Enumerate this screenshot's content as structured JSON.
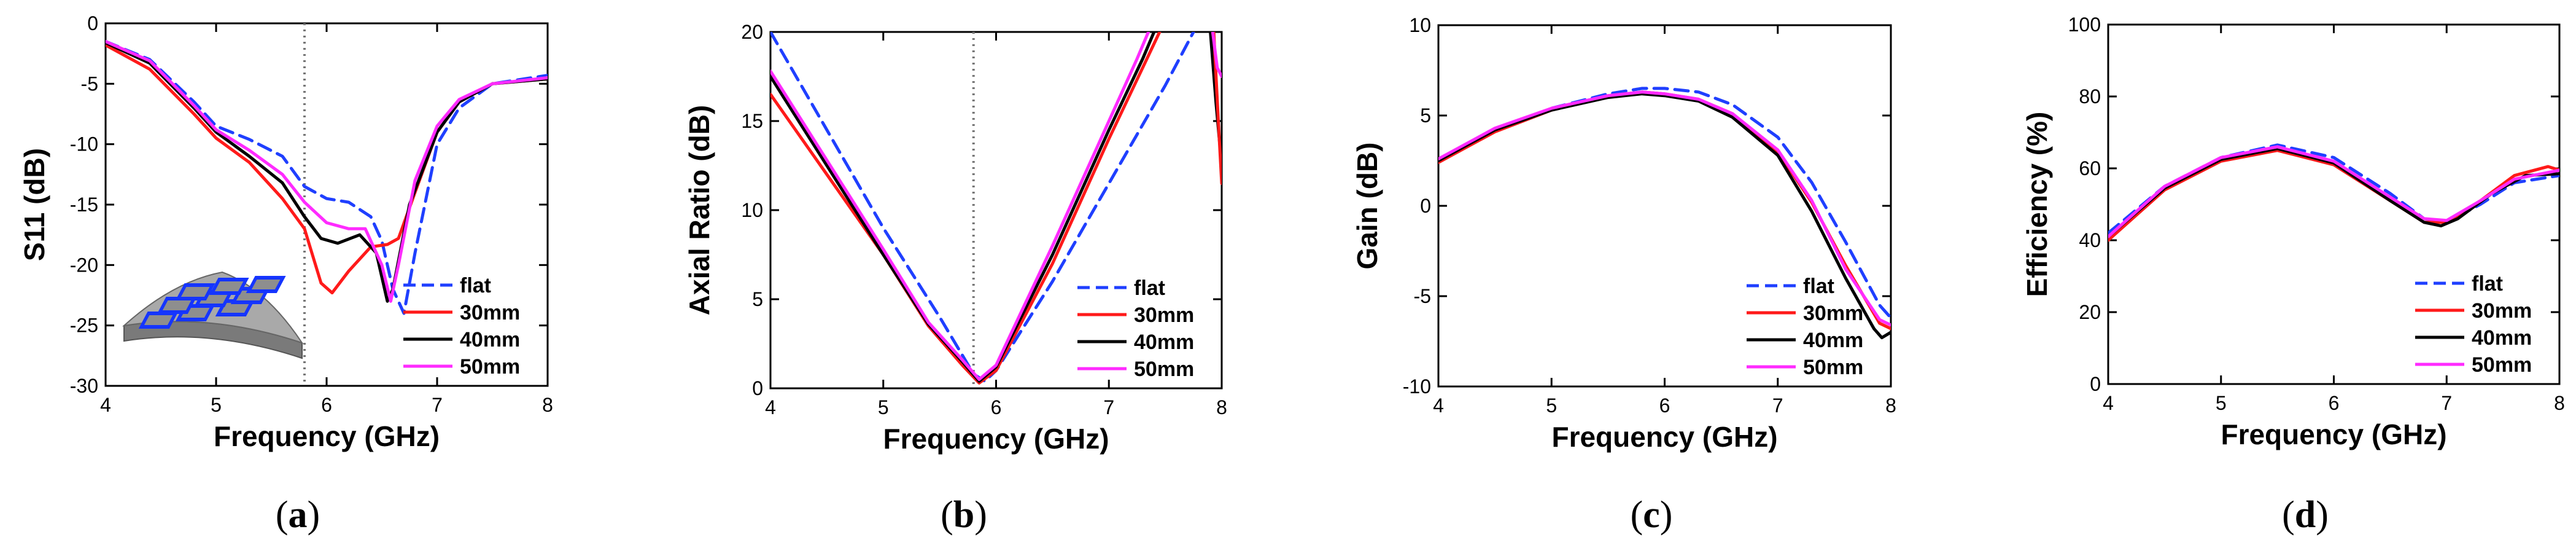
{
  "colors": {
    "flat": "#1f3fff",
    "30mm": "#ff1a1a",
    "40mm": "#000000",
    "50mm": "#ff2bff"
  },
  "chart_data": [
    {
      "id": "a",
      "type": "line",
      "caption": "a",
      "xlabel": "Frequency (GHz)",
      "ylabel": "S11 (dB)",
      "xlim": [
        4,
        8
      ],
      "ylim": [
        -30,
        0
      ],
      "xticks": [
        4,
        5,
        6,
        7,
        8
      ],
      "yticks": [
        0,
        -5,
        -10,
        -15,
        -20,
        -25,
        -30
      ],
      "marker_x": 5.8,
      "legend": [
        "flat",
        "30mm",
        "40mm",
        "50mm"
      ],
      "legend_position": "bottom-right",
      "inset": "curved-array-icon",
      "series": [
        {
          "name": "flat",
          "style": "dashed",
          "points": [
            [
              4,
              -1.5
            ],
            [
              4.4,
              -3
            ],
            [
              4.8,
              -6.5
            ],
            [
              5,
              -8.5
            ],
            [
              5.3,
              -9.6
            ],
            [
              5.6,
              -11
            ],
            [
              5.8,
              -13.5
            ],
            [
              6,
              -14.5
            ],
            [
              6.2,
              -14.8
            ],
            [
              6.4,
              -16
            ],
            [
              6.5,
              -18
            ],
            [
              6.6,
              -22
            ],
            [
              6.7,
              -24
            ],
            [
              6.8,
              -19
            ],
            [
              7,
              -10
            ],
            [
              7.2,
              -7
            ],
            [
              7.5,
              -5
            ],
            [
              8,
              -4.3
            ]
          ]
        },
        {
          "name": "30mm",
          "style": "solid",
          "points": [
            [
              4,
              -1.8
            ],
            [
              4.4,
              -3.8
            ],
            [
              4.8,
              -7.5
            ],
            [
              5,
              -9.5
            ],
            [
              5.3,
              -11.5
            ],
            [
              5.6,
              -14.5
            ],
            [
              5.8,
              -17
            ],
            [
              5.95,
              -21.5
            ],
            [
              6.05,
              -22.3
            ],
            [
              6.2,
              -20.5
            ],
            [
              6.4,
              -18.5
            ],
            [
              6.55,
              -18.3
            ],
            [
              6.65,
              -17.8
            ],
            [
              6.8,
              -14
            ],
            [
              7,
              -9
            ],
            [
              7.2,
              -6.5
            ],
            [
              7.5,
              -5
            ],
            [
              8,
              -4.6
            ]
          ]
        },
        {
          "name": "40mm",
          "style": "solid",
          "points": [
            [
              4,
              -1.6
            ],
            [
              4.4,
              -3.3
            ],
            [
              4.8,
              -7
            ],
            [
              5,
              -9
            ],
            [
              5.3,
              -11
            ],
            [
              5.6,
              -13.2
            ],
            [
              5.8,
              -16
            ],
            [
              5.95,
              -17.8
            ],
            [
              6.1,
              -18.2
            ],
            [
              6.3,
              -17.5
            ],
            [
              6.45,
              -19
            ],
            [
              6.55,
              -23
            ],
            [
              6.6,
              -22
            ],
            [
              6.75,
              -15
            ],
            [
              7,
              -9
            ],
            [
              7.2,
              -6.5
            ],
            [
              7.5,
              -5
            ],
            [
              8,
              -4.6
            ]
          ]
        },
        {
          "name": "50mm",
          "style": "solid",
          "points": [
            [
              4,
              -1.5
            ],
            [
              4.4,
              -3.1
            ],
            [
              4.8,
              -6.8
            ],
            [
              5,
              -8.8
            ],
            [
              5.3,
              -10.5
            ],
            [
              5.6,
              -12.5
            ],
            [
              5.8,
              -14.8
            ],
            [
              6,
              -16.5
            ],
            [
              6.2,
              -17
            ],
            [
              6.35,
              -17
            ],
            [
              6.5,
              -20
            ],
            [
              6.58,
              -23
            ],
            [
              6.65,
              -20
            ],
            [
              6.8,
              -13
            ],
            [
              7,
              -8.5
            ],
            [
              7.2,
              -6.3
            ],
            [
              7.5,
              -5
            ],
            [
              8,
              -4.5
            ]
          ]
        }
      ]
    },
    {
      "id": "b",
      "type": "line",
      "caption": "b",
      "xlabel": "Frequency (GHz)",
      "ylabel": "Axial Ratio (dB)",
      "xlim": [
        4,
        8
      ],
      "ylim": [
        0,
        20
      ],
      "xticks": [
        4,
        5,
        6,
        7,
        8
      ],
      "yticks": [
        0,
        5,
        10,
        15,
        20
      ],
      "marker_x": 5.8,
      "legend": [
        "flat",
        "30mm",
        "40mm",
        "50mm"
      ],
      "legend_position": "bottom-right",
      "series": [
        {
          "name": "flat",
          "style": "dashed",
          "points": [
            [
              4,
              20
            ],
            [
              4.5,
              14.5
            ],
            [
              5,
              9
            ],
            [
              5.5,
              4
            ],
            [
              5.8,
              0.8
            ],
            [
              5.9,
              0.4
            ],
            [
              6,
              1
            ],
            [
              6.5,
              6
            ],
            [
              7,
              11.5
            ],
            [
              7.5,
              17
            ],
            [
              7.75,
              20
            ]
          ]
        },
        {
          "name": "30mm",
          "style": "solid",
          "points": [
            [
              4,
              16.5
            ],
            [
              4.5,
              12
            ],
            [
              5,
              7.5
            ],
            [
              5.4,
              3.5
            ],
            [
              5.7,
              1.3
            ],
            [
              5.85,
              0.3
            ],
            [
              6,
              1
            ],
            [
              6.5,
              7
            ],
            [
              7,
              14
            ],
            [
              7.3,
              18
            ],
            [
              7.45,
              20
            ]
          ]
        },
        {
          "name": "40mm",
          "style": "solid",
          "points": [
            [
              4,
              17.5
            ],
            [
              4.5,
              12.5
            ],
            [
              5,
              7.5
            ],
            [
              5.4,
              3.6
            ],
            [
              5.7,
              1.5
            ],
            [
              5.85,
              0.4
            ],
            [
              6,
              1.2
            ],
            [
              6.5,
              7.5
            ],
            [
              7,
              14.5
            ],
            [
              7.3,
              18.5
            ],
            [
              7.4,
              20
            ]
          ]
        },
        {
          "name": "50mm",
          "style": "solid",
          "points": [
            [
              4,
              17.8
            ],
            [
              4.5,
              12.8
            ],
            [
              5,
              7.8
            ],
            [
              5.4,
              3.7
            ],
            [
              5.7,
              1.6
            ],
            [
              5.85,
              0.5
            ],
            [
              6,
              1.3
            ],
            [
              6.5,
              8
            ],
            [
              7,
              15
            ],
            [
              7.25,
              18.5
            ],
            [
              7.35,
              20
            ]
          ]
        },
        {
          "name": "40mm",
          "style": "solid",
          "segment": "edge",
          "points": [
            [
              7.9,
              20
            ],
            [
              7.95,
              16
            ],
            [
              8,
              12.5
            ]
          ]
        },
        {
          "name": "30mm",
          "style": "solid",
          "segment": "edge",
          "points": [
            [
              7.93,
              20
            ],
            [
              7.97,
              15
            ],
            [
              8,
              11.5
            ]
          ]
        },
        {
          "name": "50mm",
          "style": "solid",
          "segment": "edge",
          "points": [
            [
              7.92,
              20
            ],
            [
              7.96,
              18
            ],
            [
              8,
              17.5
            ]
          ]
        }
      ]
    },
    {
      "id": "c",
      "type": "line",
      "caption": "c",
      "xlabel": "Frequency (GHz)",
      "ylabel": "Gain (dB)",
      "xlim": [
        4,
        8
      ],
      "ylim": [
        -10,
        10
      ],
      "xticks": [
        4,
        5,
        6,
        7,
        8
      ],
      "yticks": [
        10,
        5,
        0,
        -5,
        -10
      ],
      "legend": [
        "flat",
        "30mm",
        "40mm",
        "50mm"
      ],
      "legend_position": "bottom-right",
      "series": [
        {
          "name": "flat",
          "style": "dashed",
          "points": [
            [
              4,
              2.5
            ],
            [
              4.5,
              4.2
            ],
            [
              5,
              5.4
            ],
            [
              5.5,
              6.2
            ],
            [
              5.8,
              6.5
            ],
            [
              6,
              6.5
            ],
            [
              6.3,
              6.3
            ],
            [
              6.6,
              5.6
            ],
            [
              7,
              3.8
            ],
            [
              7.3,
              1.3
            ],
            [
              7.6,
              -2
            ],
            [
              7.9,
              -5.5
            ],
            [
              8,
              -6.2
            ]
          ]
        },
        {
          "name": "30mm",
          "style": "solid",
          "points": [
            [
              4,
              2.4
            ],
            [
              4.5,
              4.1
            ],
            [
              5,
              5.3
            ],
            [
              5.5,
              6.1
            ],
            [
              5.8,
              6.3
            ],
            [
              6,
              6.2
            ],
            [
              6.3,
              5.9
            ],
            [
              6.6,
              5.1
            ],
            [
              7,
              3
            ],
            [
              7.3,
              0.2
            ],
            [
              7.6,
              -3.3
            ],
            [
              7.9,
              -6.5
            ],
            [
              8,
              -6.8
            ]
          ]
        },
        {
          "name": "40mm",
          "style": "solid",
          "points": [
            [
              4,
              2.5
            ],
            [
              4.5,
              4.2
            ],
            [
              5,
              5.3
            ],
            [
              5.5,
              6
            ],
            [
              5.8,
              6.2
            ],
            [
              6,
              6.1
            ],
            [
              6.3,
              5.8
            ],
            [
              6.6,
              4.9
            ],
            [
              7,
              2.8
            ],
            [
              7.3,
              -0.3
            ],
            [
              7.6,
              -4
            ],
            [
              7.85,
              -6.8
            ],
            [
              7.92,
              -7.3
            ],
            [
              8,
              -7
            ]
          ]
        },
        {
          "name": "50mm",
          "style": "solid",
          "points": [
            [
              4,
              2.6
            ],
            [
              4.5,
              4.3
            ],
            [
              5,
              5.4
            ],
            [
              5.5,
              6.1
            ],
            [
              5.8,
              6.3
            ],
            [
              6,
              6.2
            ],
            [
              6.3,
              5.9
            ],
            [
              6.6,
              5.1
            ],
            [
              7,
              3.1
            ],
            [
              7.3,
              0.3
            ],
            [
              7.6,
              -3.5
            ],
            [
              7.9,
              -6.3
            ],
            [
              8,
              -6.6
            ]
          ]
        }
      ]
    },
    {
      "id": "d",
      "type": "line",
      "caption": "d",
      "xlabel": "Frequency (GHz)",
      "ylabel": "Efficiency (%)",
      "xlim": [
        4,
        8
      ],
      "ylim": [
        0,
        100
      ],
      "xticks": [
        4,
        5,
        6,
        7,
        8
      ],
      "yticks": [
        100,
        80,
        60,
        40,
        20,
        0
      ],
      "legend": [
        "flat",
        "30mm",
        "40mm",
        "50mm"
      ],
      "legend_position": "bottom-right",
      "series": [
        {
          "name": "flat",
          "style": "dashed",
          "points": [
            [
              4,
              42
            ],
            [
              4.5,
              55
            ],
            [
              5,
              63
            ],
            [
              5.5,
              66.5
            ],
            [
              6,
              63
            ],
            [
              6.5,
              53
            ],
            [
              6.8,
              46
            ],
            [
              7,
              45
            ],
            [
              7.3,
              50
            ],
            [
              7.6,
              56
            ],
            [
              8,
              58
            ]
          ]
        },
        {
          "name": "30mm",
          "style": "solid",
          "points": [
            [
              4,
              40
            ],
            [
              4.5,
              54
            ],
            [
              5,
              62
            ],
            [
              5.5,
              65
            ],
            [
              6,
              61
            ],
            [
              6.5,
              51
            ],
            [
              6.8,
              45
            ],
            [
              7,
              45
            ],
            [
              7.3,
              51
            ],
            [
              7.6,
              58
            ],
            [
              7.9,
              60.5
            ],
            [
              8,
              59.5
            ]
          ]
        },
        {
          "name": "40mm",
          "style": "solid",
          "points": [
            [
              4,
              41
            ],
            [
              4.5,
              54.5
            ],
            [
              5,
              62.5
            ],
            [
              5.5,
              65.5
            ],
            [
              6,
              61.5
            ],
            [
              6.5,
              51
            ],
            [
              6.8,
              45
            ],
            [
              6.95,
              44
            ],
            [
              7.1,
              46
            ],
            [
              7.4,
              53
            ],
            [
              7.7,
              58
            ],
            [
              8,
              58.5
            ]
          ]
        },
        {
          "name": "50mm",
          "style": "solid",
          "points": [
            [
              4,
              41
            ],
            [
              4.5,
              55
            ],
            [
              5,
              63
            ],
            [
              5.5,
              66
            ],
            [
              6,
              62
            ],
            [
              6.5,
              52
            ],
            [
              6.8,
              46
            ],
            [
              7,
              45.5
            ],
            [
              7.3,
              51
            ],
            [
              7.6,
              57
            ],
            [
              8,
              59.5
            ]
          ]
        }
      ]
    }
  ]
}
